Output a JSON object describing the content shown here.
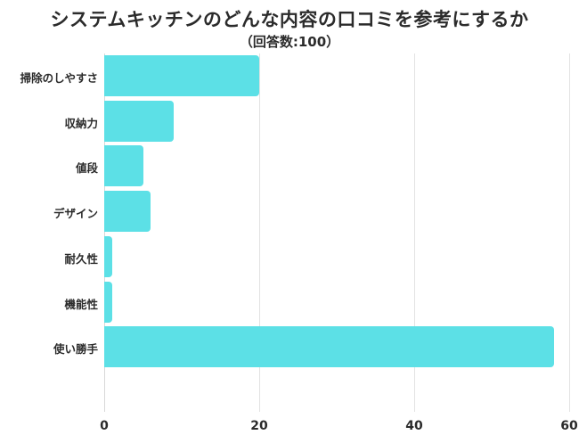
{
  "header": {
    "title": "システムキッチンのどんな内容の口コミを参考にするか",
    "subtitle": "（回答数:100）"
  },
  "colors": {
    "bar": "#5ce0e6",
    "grid": "#e2e2e2",
    "text": "#2b2b2b"
  },
  "chart_data": {
    "type": "bar",
    "orientation": "horizontal",
    "title": "システムキッチンのどんな内容の口コミを参考にするか",
    "subtitle": "（回答数:100）",
    "categories": [
      "掃除のしやすさ",
      "収納力",
      "値段",
      "デザイン",
      "耐久性",
      "機能性",
      "使い勝手"
    ],
    "values": [
      20,
      9,
      5,
      6,
      1,
      1,
      58
    ],
    "xlabel": "",
    "ylabel": "",
    "xlim": [
      0,
      60
    ],
    "xticks": [
      "0",
      "20",
      "40",
      "60"
    ],
    "grid": true,
    "legend": null
  }
}
